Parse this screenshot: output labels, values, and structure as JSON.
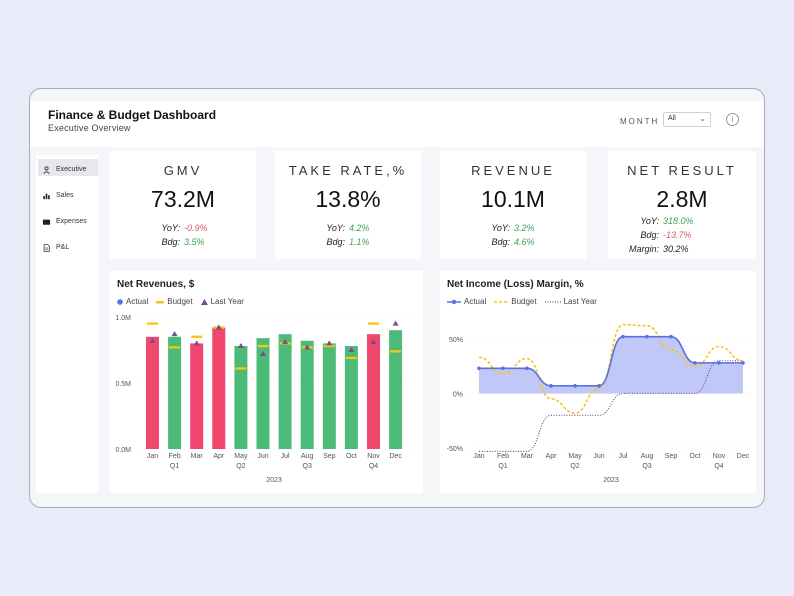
{
  "header": {
    "title": "Finance & Budget Dashboard",
    "subtitle": "Executive Overview",
    "month_label": "MONTH",
    "month_value": "All"
  },
  "sidebar": {
    "items": [
      {
        "label": "Executive",
        "icon": "people-icon",
        "active": true
      },
      {
        "label": "Sales",
        "icon": "bar-chart-icon",
        "active": false
      },
      {
        "label": "Expenses",
        "icon": "wallet-icon",
        "active": false
      },
      {
        "label": "P&L",
        "icon": "document-icon",
        "active": false
      }
    ]
  },
  "kpis": [
    {
      "title": "GMV",
      "value": "73.2M",
      "yoy_label": "YoY:",
      "yoy": "-0.9%",
      "bdg_label": "Bdg:",
      "bdg": "3.5%"
    },
    {
      "title": "TAKE RATE,%",
      "value": "13.8%",
      "yoy_label": "YoY:",
      "yoy": "4.2%",
      "bdg_label": "Bdg:",
      "bdg": "1.1%"
    },
    {
      "title": "REVENUE",
      "value": "10.1M",
      "yoy_label": "YoY:",
      "yoy": "3.2%",
      "bdg_label": "Bdg:",
      "bdg": "4.6%"
    },
    {
      "title": "NET RESULT",
      "value": "2.8M",
      "yoy_label": "YoY:",
      "yoy": "318.0%",
      "bdg_label": "Bdg:",
      "bdg": "-13.7%",
      "margin_label": "Margin:",
      "margin": "30.2%"
    }
  ],
  "colors": {
    "positive": "#3aa35b",
    "negative": "#d95b6b",
    "bar_green": "#4dbb78",
    "bar_red": "#f0476e",
    "budget": "#f5c518",
    "last_year": "#7b4a8c",
    "actual_line": "#5b6fde",
    "area_fill": "#b8c2f5"
  },
  "chart_data": [
    {
      "type": "bar",
      "title": "Net Revenues, $",
      "legend": [
        "Actual",
        "Budget",
        "Last Year"
      ],
      "legend_position": "top-left",
      "categories": [
        "Jan",
        "Feb",
        "Mar",
        "Apr",
        "May",
        "Jun",
        "Jul",
        "Aug",
        "Sep",
        "Oct",
        "Nov",
        "Dec"
      ],
      "quarters": [
        "Q1",
        "Q2",
        "Q3",
        "Q4"
      ],
      "year": "2023",
      "y_ticks": [
        "1.0M",
        "0.5M",
        "0.0M"
      ],
      "ylim": [
        0,
        1.0
      ],
      "series": [
        {
          "name": "Actual",
          "values": [
            0.85,
            0.85,
            0.8,
            0.92,
            0.78,
            0.84,
            0.87,
            0.82,
            0.8,
            0.78,
            0.87,
            0.9
          ],
          "status": [
            "red",
            "green",
            "red",
            "red",
            "green",
            "green",
            "green",
            "green",
            "green",
            "green",
            "red",
            "green"
          ]
        },
        {
          "name": "Budget",
          "values": [
            0.95,
            0.77,
            0.85,
            0.92,
            0.61,
            0.78,
            0.8,
            0.77,
            0.78,
            0.69,
            0.95,
            0.74
          ]
        },
        {
          "name": "Last Year",
          "values": [
            0.82,
            0.87,
            0.8,
            0.92,
            0.78,
            0.72,
            0.81,
            0.77,
            0.8,
            0.75,
            0.81,
            0.95
          ]
        }
      ]
    },
    {
      "type": "line",
      "title": "Net Income (Loss) Margin, %",
      "legend": [
        "Actual",
        "Budget",
        "Last Year"
      ],
      "legend_position": "top-left",
      "categories": [
        "Jan",
        "Feb",
        "Mar",
        "Apr",
        "May",
        "Jun",
        "Jul",
        "Aug",
        "Sep",
        "Oct",
        "Nov",
        "Dec"
      ],
      "quarters": [
        "Q1",
        "Q2",
        "Q3",
        "Q4"
      ],
      "year": "2023",
      "y_ticks": [
        "50%",
        "0%",
        "-50%"
      ],
      "ylim": [
        -60,
        70
      ],
      "series": [
        {
          "name": "Actual",
          "values": [
            23,
            23,
            23,
            7,
            7,
            7,
            52,
            52,
            52,
            28,
            28,
            28
          ]
        },
        {
          "name": "Budget",
          "values": [
            33,
            18,
            32,
            -5,
            -18,
            5,
            63,
            62,
            40,
            25,
            43,
            30
          ]
        },
        {
          "name": "Last Year",
          "values": [
            -53,
            -53,
            -53,
            -20,
            -20,
            -20,
            0,
            0,
            0,
            0,
            30,
            30
          ]
        }
      ]
    }
  ]
}
